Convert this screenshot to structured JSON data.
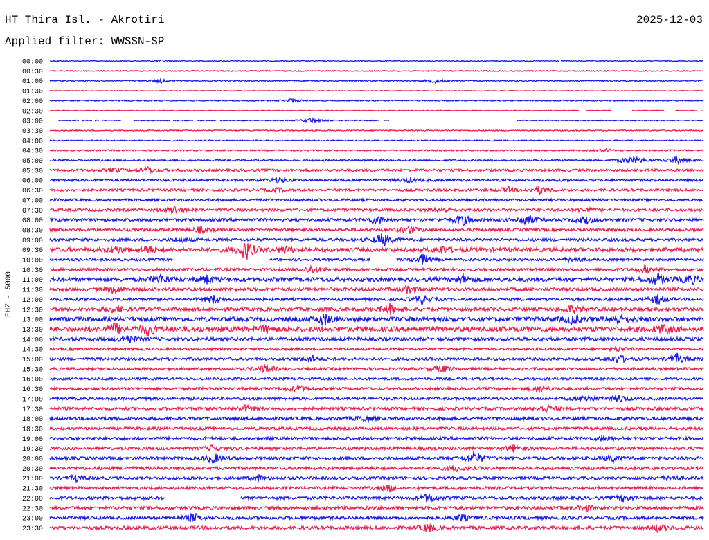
{
  "header": {
    "station": "HT Thira Isl. - Akrotiri",
    "date": "2025-12-03",
    "filter": "Applied filter: WWSSN-SP"
  },
  "side_label": "EHZ - 5000",
  "colors": {
    "blue": "#1a1ae6",
    "red": "#e8204f"
  },
  "chart_data": {
    "type": "line",
    "title": "",
    "xlabel": "",
    "ylabel": "EHZ - 5000",
    "rows": [
      {
        "label": "00:00",
        "color": "blue",
        "amp": 0.6,
        "gaps": [
          [
            0.78,
            0.781
          ]
        ],
        "events": [
          [
            0.17,
            1.5
          ]
        ]
      },
      {
        "label": "00:30",
        "color": "red",
        "amp": 0.8,
        "gaps": [],
        "events": []
      },
      {
        "label": "01:00",
        "color": "blue",
        "amp": 0.8,
        "gaps": [],
        "events": [
          [
            0.17,
            3
          ],
          [
            0.59,
            3
          ]
        ]
      },
      {
        "label": "01:30",
        "color": "red",
        "amp": 0.5,
        "gaps": [],
        "events": []
      },
      {
        "label": "02:00",
        "color": "blue",
        "amp": 0.8,
        "gaps": [],
        "events": [
          [
            0.37,
            3
          ]
        ]
      },
      {
        "label": "02:30",
        "color": "red",
        "amp": 0.5,
        "gaps": [
          [
            0.81,
            0.82
          ],
          [
            0.86,
            0.89
          ],
          [
            0.94,
            0.956
          ],
          [
            0.99,
            0.995
          ]
        ],
        "events": []
      },
      {
        "label": "03:00",
        "color": "blue",
        "amp": 0.6,
        "gaps": [
          [
            0.0,
            0.012
          ],
          [
            0.045,
            0.048
          ],
          [
            0.065,
            0.068
          ],
          [
            0.076,
            0.08
          ],
          [
            0.11,
            0.128
          ],
          [
            0.185,
            0.188
          ],
          [
            0.22,
            0.224
          ],
          [
            0.255,
            0.26
          ],
          [
            0.505,
            0.51
          ],
          [
            0.52,
            0.715
          ]
        ],
        "events": [
          [
            0.4,
            4
          ]
        ]
      },
      {
        "label": "03:30",
        "color": "red",
        "amp": 0.8,
        "gaps": [],
        "events": []
      },
      {
        "label": "04:00",
        "color": "blue",
        "amp": 0.8,
        "gaps": [],
        "events": []
      },
      {
        "label": "04:30",
        "color": "red",
        "amp": 1.0,
        "gaps": [],
        "events": [
          [
            0.85,
            2
          ]
        ]
      },
      {
        "label": "05:00",
        "color": "blue",
        "amp": 1.2,
        "gaps": [],
        "events": [
          [
            0.9,
            5
          ],
          [
            0.96,
            6
          ],
          [
            0.88,
            3
          ]
        ]
      },
      {
        "label": "05:30",
        "color": "red",
        "amp": 1.8,
        "gaps": [],
        "events": [
          [
            0.15,
            5
          ],
          [
            0.1,
            3
          ]
        ]
      },
      {
        "label": "06:00",
        "color": "blue",
        "amp": 1.8,
        "gaps": [],
        "events": [
          [
            0.35,
            4
          ],
          [
            0.55,
            3
          ]
        ]
      },
      {
        "label": "06:30",
        "color": "red",
        "amp": 1.8,
        "gaps": [],
        "events": [
          [
            0.75,
            6
          ],
          [
            0.7,
            4
          ],
          [
            0.35,
            3
          ]
        ]
      },
      {
        "label": "07:00",
        "color": "blue",
        "amp": 1.8,
        "gaps": [],
        "events": []
      },
      {
        "label": "07:30",
        "color": "red",
        "amp": 2.0,
        "gaps": [],
        "events": [
          [
            0.19,
            6
          ],
          [
            0.6,
            3
          ],
          [
            0.82,
            3
          ]
        ]
      },
      {
        "label": "08:00",
        "color": "blue",
        "amp": 2.0,
        "gaps": [],
        "events": [
          [
            0.5,
            6
          ],
          [
            0.63,
            8
          ],
          [
            0.73,
            8
          ],
          [
            0.82,
            6
          ]
        ]
      },
      {
        "label": "08:30",
        "color": "red",
        "amp": 2.0,
        "gaps": [],
        "events": [
          [
            0.23,
            4
          ],
          [
            0.55,
            5
          ]
        ]
      },
      {
        "label": "09:00",
        "color": "blue",
        "amp": 2.0,
        "gaps": [],
        "events": [
          [
            0.51,
            10
          ],
          [
            0.2,
            3
          ]
        ]
      },
      {
        "label": "09:30",
        "color": "red",
        "amp": 3.0,
        "gaps": [],
        "events": [
          [
            0.3,
            14
          ],
          [
            0.15,
            5
          ],
          [
            0.1,
            5
          ],
          [
            0.6,
            5
          ],
          [
            0.36,
            5
          ]
        ]
      },
      {
        "label": "10:00",
        "color": "blue",
        "amp": 1.8,
        "gaps": [
          [
            0.188,
            0.335
          ],
          [
            0.49,
            0.53
          ]
        ],
        "events": [
          [
            0.57,
            8
          ],
          [
            0.8,
            4
          ]
        ]
      },
      {
        "label": "10:30",
        "color": "red",
        "amp": 2.0,
        "gaps": [],
        "events": [
          [
            0.4,
            6
          ],
          [
            0.91,
            5
          ]
        ]
      },
      {
        "label": "11:00",
        "color": "blue",
        "amp": 3.0,
        "gaps": [],
        "events": [
          [
            0.17,
            6
          ],
          [
            0.24,
            6
          ],
          [
            0.63,
            6
          ],
          [
            0.93,
            8
          ],
          [
            0.98,
            6
          ]
        ]
      },
      {
        "label": "11:30",
        "color": "red",
        "amp": 2.5,
        "gaps": [],
        "events": [
          [
            0.1,
            5
          ],
          [
            0.55,
            5
          ]
        ]
      },
      {
        "label": "12:00",
        "color": "blue",
        "amp": 2.0,
        "gaps": [],
        "events": [
          [
            0.25,
            6
          ],
          [
            0.57,
            6
          ],
          [
            0.93,
            7
          ]
        ]
      },
      {
        "label": "12:30",
        "color": "red",
        "amp": 2.5,
        "gaps": [],
        "events": [
          [
            0.1,
            5
          ],
          [
            0.52,
            7
          ],
          [
            0.8,
            6
          ]
        ]
      },
      {
        "label": "13:00",
        "color": "blue",
        "amp": 3.0,
        "gaps": [],
        "events": [
          [
            0.42,
            8
          ],
          [
            0.8,
            7
          ],
          [
            0.87,
            7
          ]
        ]
      },
      {
        "label": "13:30",
        "color": "red",
        "amp": 3.5,
        "gaps": [],
        "events": [
          [
            0.1,
            8
          ],
          [
            0.15,
            8
          ],
          [
            0.33,
            4
          ],
          [
            0.94,
            6
          ]
        ]
      },
      {
        "label": "14:00",
        "color": "blue",
        "amp": 2.5,
        "gaps": [],
        "events": [
          [
            0.12,
            6
          ]
        ]
      },
      {
        "label": "14:30",
        "color": "red",
        "amp": 1.8,
        "gaps": [],
        "events": [
          [
            0.87,
            3
          ]
        ]
      },
      {
        "label": "15:00",
        "color": "blue",
        "amp": 2.0,
        "gaps": [],
        "events": [
          [
            0.4,
            5
          ],
          [
            0.87,
            6
          ],
          [
            0.96,
            7
          ]
        ]
      },
      {
        "label": "15:30",
        "color": "red",
        "amp": 2.0,
        "gaps": [],
        "events": [
          [
            0.33,
            6
          ],
          [
            0.6,
            6
          ]
        ]
      },
      {
        "label": "16:00",
        "color": "blue",
        "amp": 1.8,
        "gaps": [],
        "events": []
      },
      {
        "label": "16:30",
        "color": "red",
        "amp": 2.0,
        "gaps": [],
        "events": [
          [
            0.38,
            5
          ],
          [
            0.75,
            5
          ]
        ]
      },
      {
        "label": "17:00",
        "color": "blue",
        "amp": 2.0,
        "gaps": [],
        "events": [
          [
            0.82,
            6
          ],
          [
            0.87,
            5
          ]
        ]
      },
      {
        "label": "17:30",
        "color": "red",
        "amp": 2.0,
        "gaps": [],
        "events": [
          [
            0.76,
            5
          ],
          [
            0.3,
            4
          ]
        ]
      },
      {
        "label": "18:00",
        "color": "blue",
        "amp": 2.2,
        "gaps": [],
        "events": [
          [
            0.48,
            4
          ]
        ]
      },
      {
        "label": "18:30",
        "color": "red",
        "amp": 2.0,
        "gaps": [],
        "events": []
      },
      {
        "label": "19:00",
        "color": "blue",
        "amp": 2.2,
        "gaps": [],
        "events": [
          [
            0.85,
            4
          ]
        ]
      },
      {
        "label": "19:30",
        "color": "red",
        "amp": 2.2,
        "gaps": [],
        "events": [
          [
            0.71,
            5
          ],
          [
            0.25,
            4
          ]
        ]
      },
      {
        "label": "20:00",
        "color": "blue",
        "amp": 2.2,
        "gaps": [],
        "events": [
          [
            0.65,
            10
          ],
          [
            0.25,
            7
          ],
          [
            0.86,
            5
          ]
        ]
      },
      {
        "label": "20:30",
        "color": "red",
        "amp": 2.2,
        "gaps": [],
        "events": [
          [
            0.62,
            4
          ]
        ]
      },
      {
        "label": "21:00",
        "color": "blue",
        "amp": 2.2,
        "gaps": [],
        "events": [
          [
            0.04,
            4
          ],
          [
            0.32,
            4
          ],
          [
            0.95,
            4
          ]
        ]
      },
      {
        "label": "21:30",
        "color": "red",
        "amp": 2.2,
        "gaps": [],
        "events": [
          [
            0.52,
            4
          ]
        ]
      },
      {
        "label": "22:00",
        "color": "blue",
        "amp": 2.2,
        "gaps": [
          [
            0.176,
            0.29
          ]
        ],
        "events": [
          [
            0.58,
            6
          ],
          [
            0.88,
            5
          ]
        ]
      },
      {
        "label": "22:30",
        "color": "red",
        "amp": 2.2,
        "gaps": [],
        "events": [
          [
            0.82,
            4
          ]
        ]
      },
      {
        "label": "23:00",
        "color": "blue",
        "amp": 2.2,
        "gaps": [],
        "events": [
          [
            0.22,
            6
          ],
          [
            0.63,
            4
          ]
        ]
      },
      {
        "label": "23:30",
        "color": "red",
        "amp": 2.4,
        "gaps": [],
        "events": [
          [
            0.58,
            6
          ],
          [
            0.93,
            5
          ]
        ]
      }
    ]
  }
}
